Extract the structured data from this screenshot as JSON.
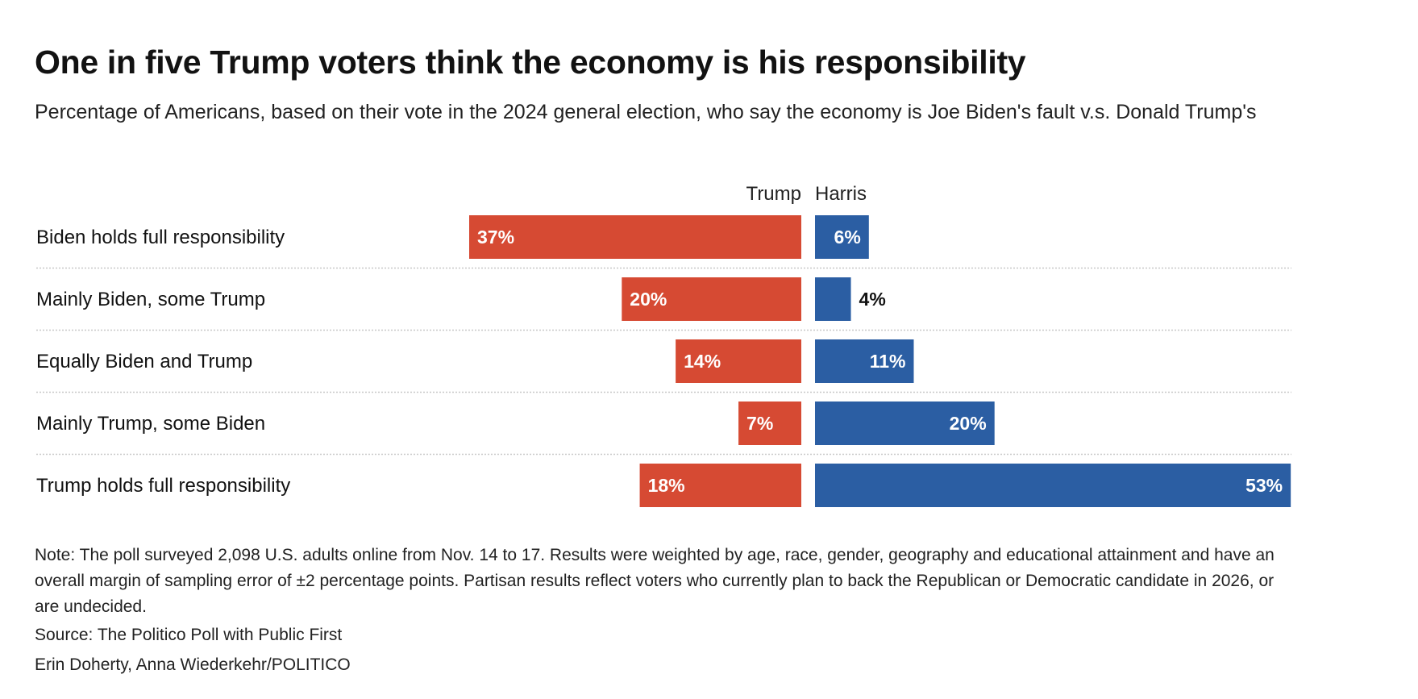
{
  "title": "One in five Trump voters think the economy is his responsibility",
  "subtitle": "Percentage of Americans, based on their vote in the 2024 general election, who say the economy is Joe Biden's fault v.s. Donald Trump's",
  "note": "Note: The poll surveyed 2,098 U.S. adults online from Nov. 14 to 17. Results were weighted by age, race, gender, geography and educational attainment and have an overall margin of sampling error of ±2 percentage points. Partisan results reflect voters who currently plan to back the Republican or Democratic candidate in 2026, or are undecided.",
  "source": "Source: The Politico Poll with Public First",
  "credit": "Erin Doherty, Anna Wiederkehr/POLITICO",
  "colors": {
    "trump": "#d64a33",
    "harris": "#2b5ea3",
    "grid": "#c8c8c8"
  },
  "chart_data": {
    "type": "bar",
    "orientation": "horizontal-diverging",
    "categories": [
      "Biden holds full responsibility",
      "Mainly Biden, some Trump",
      "Equally Biden and Trump",
      "Mainly Trump, some Biden",
      "Trump holds full responsibility"
    ],
    "series": [
      {
        "name": "Trump",
        "values": [
          37,
          20,
          14,
          7,
          18
        ],
        "labels": [
          "37%",
          "20%",
          "14%",
          "7%",
          "18%"
        ]
      },
      {
        "name": "Harris",
        "values": [
          6,
          4,
          11,
          20,
          53
        ],
        "labels": [
          "6%",
          "4%",
          "11%",
          "20%",
          "53%"
        ]
      }
    ],
    "unit": "%",
    "legend": "column headers above bars",
    "grid": false
  }
}
